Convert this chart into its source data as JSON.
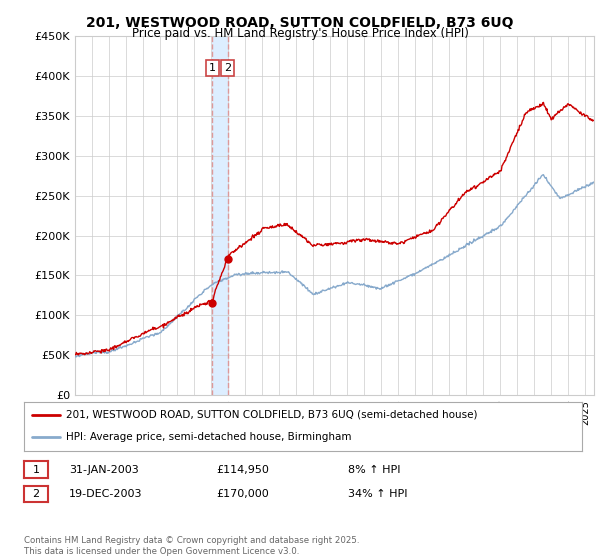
{
  "title": "201, WESTWOOD ROAD, SUTTON COLDFIELD, B73 6UQ",
  "subtitle": "Price paid vs. HM Land Registry's House Price Index (HPI)",
  "legend_label_red": "201, WESTWOOD ROAD, SUTTON COLDFIELD, B73 6UQ (semi-detached house)",
  "legend_label_blue": "HPI: Average price, semi-detached house, Birmingham",
  "transaction1_date": "31-JAN-2003",
  "transaction1_price": "£114,950",
  "transaction1_hpi": "8% ↑ HPI",
  "transaction2_date": "19-DEC-2003",
  "transaction2_price": "£170,000",
  "transaction2_hpi": "34% ↑ HPI",
  "footer": "Contains HM Land Registry data © Crown copyright and database right 2025.\nThis data is licensed under the Open Government Licence v3.0.",
  "ylim": [
    0,
    450000
  ],
  "yticks": [
    0,
    50000,
    100000,
    150000,
    200000,
    250000,
    300000,
    350000,
    400000,
    450000
  ],
  "transaction1_x": 2003.08,
  "transaction2_x": 2003.97,
  "transaction1_y": 114950,
  "transaction2_y": 170000,
  "red_color": "#cc0000",
  "blue_color": "#88aacc",
  "vline_color": "#dd9999",
  "shade_color": "#ddeeff",
  "background_color": "#ffffff",
  "grid_color": "#cccccc",
  "xmin": 1995,
  "xmax": 2025.5
}
